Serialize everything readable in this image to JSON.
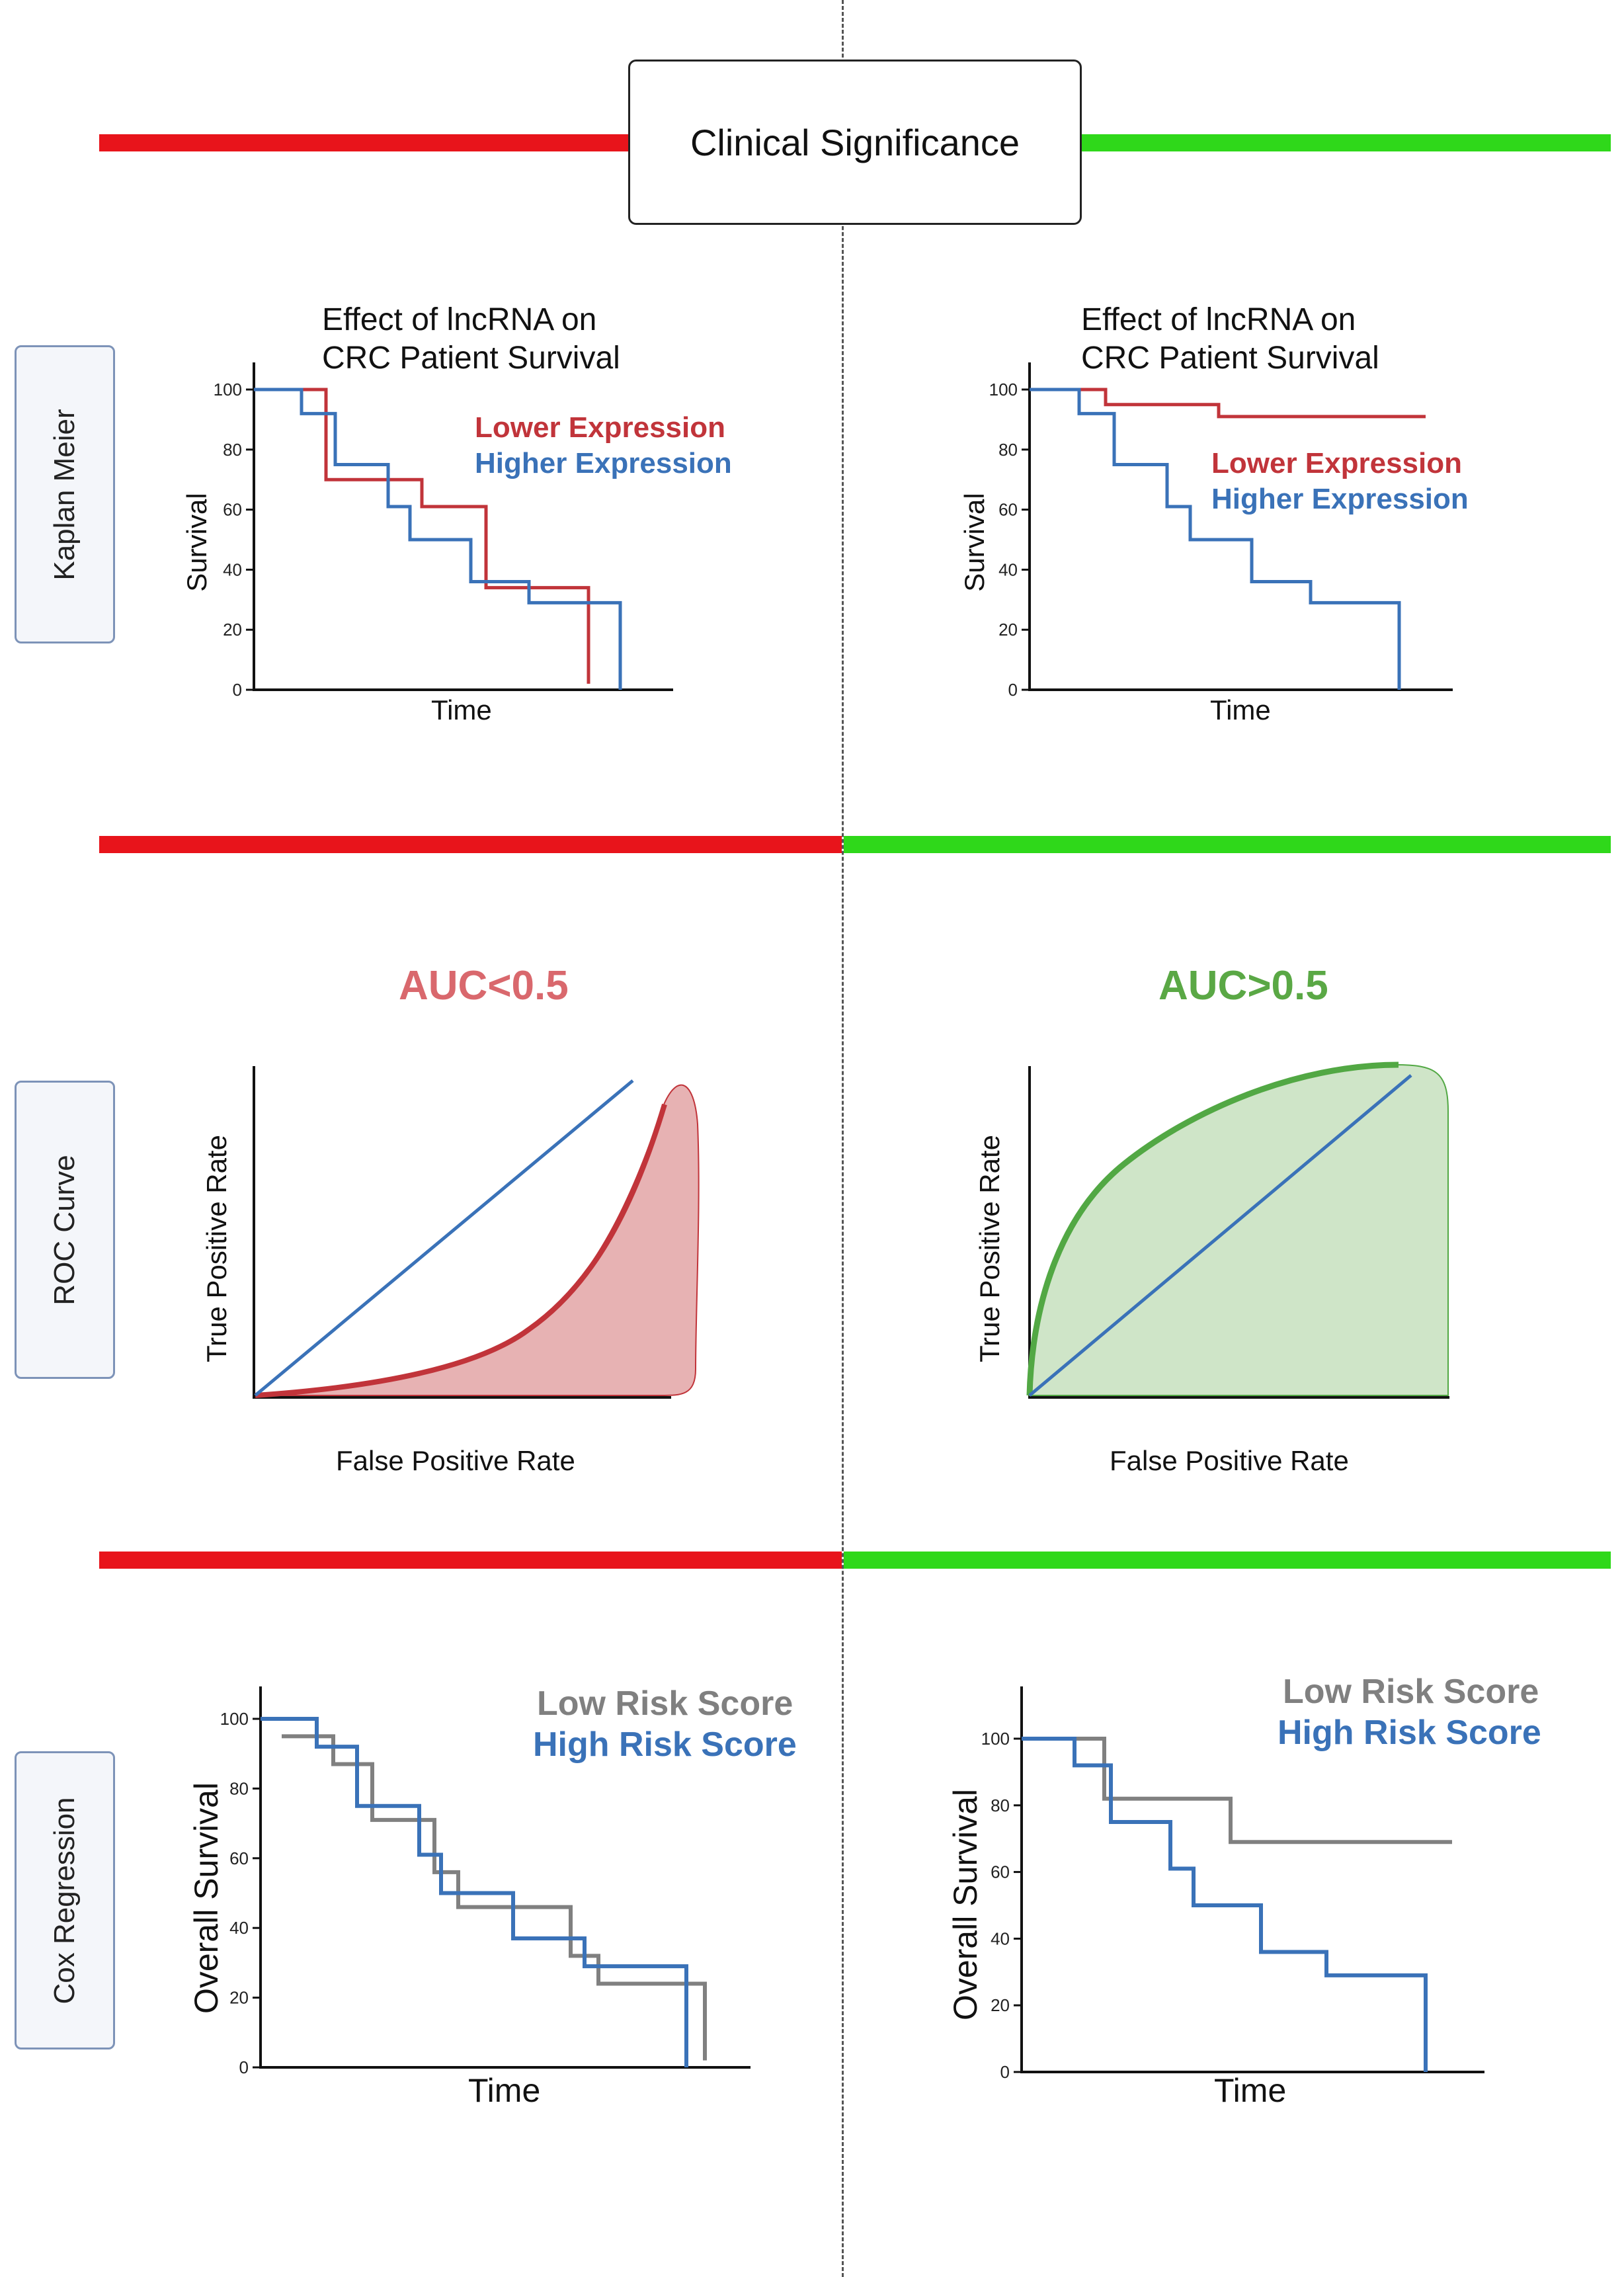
{
  "header": {
    "title": "Clinical Significance"
  },
  "colors": {
    "negative": "#e8141b",
    "positive": "#2fd81a",
    "red_line": "#c1343a",
    "blue_line": "#3a72b8",
    "gray_line": "#808080",
    "green_line": "#52a844",
    "auc_neg": "#d9686d",
    "auc_pos": "#5aa845"
  },
  "rows": {
    "kaplan_meier": {
      "label": "Kaplan Meier"
    },
    "roc_curve": {
      "label": "ROC Curve"
    },
    "cox_regression": {
      "label": "Cox Regression"
    }
  },
  "charts": {
    "km_left": {
      "title_line1": "Effect of lncRNA on",
      "title_line2": "CRC Patient Survival",
      "legend_lower": "Lower Expression",
      "legend_higher": "Higher Expression",
      "xlabel": "Time",
      "ylabel": "Survival",
      "yticks": [
        "100",
        "80",
        "60",
        "40",
        "20",
        "0"
      ]
    },
    "km_right": {
      "title_line1": "Effect of lncRNA on",
      "title_line2": "CRC Patient Survival",
      "legend_lower": "Lower Expression",
      "legend_higher": "Higher Expression",
      "xlabel": "Time",
      "ylabel": "Survival",
      "yticks": [
        "100",
        "80",
        "60",
        "40",
        "20",
        "0"
      ]
    },
    "roc_left": {
      "auc_label": "AUC<0.5",
      "xlabel": "False Positive Rate",
      "ylabel": "True Positive Rate"
    },
    "roc_right": {
      "auc_label": "AUC>0.5",
      "xlabel": "False Positive Rate",
      "ylabel": "True Positive Rate"
    },
    "cox_left": {
      "legend_low": "Low Risk Score",
      "legend_high": "High Risk Score",
      "xlabel": "Time",
      "ylabel": "Overall Survival",
      "yticks": [
        "100",
        "80",
        "60",
        "40",
        "20",
        "0"
      ]
    },
    "cox_right": {
      "legend_low": "Low Risk Score",
      "legend_high": "High Risk Score",
      "xlabel": "Time",
      "ylabel": "Overall Survival",
      "yticks": [
        "100",
        "80",
        "60",
        "40",
        "20",
        "0"
      ]
    }
  },
  "chart_data": [
    {
      "type": "line",
      "title": "Effect of lncRNA on CRC Patient Survival",
      "xlabel": "Time",
      "ylabel": "Survival",
      "ylim": [
        0,
        100
      ],
      "series": [
        {
          "name": "Lower Expression",
          "x": [
            0,
            1,
            2,
            3,
            4,
            5,
            6,
            6.6
          ],
          "y": [
            100,
            70,
            70,
            61,
            34,
            34,
            34,
            2
          ]
        },
        {
          "name": "Higher Expression",
          "x": [
            0,
            1,
            1.5,
            2.7,
            3.5,
            4.4,
            5.2,
            7.0
          ],
          "y": [
            100,
            92,
            75,
            61,
            50,
            36,
            29,
            0
          ]
        }
      ]
    },
    {
      "type": "line",
      "title": "Effect of lncRNA on CRC Patient Survival",
      "xlabel": "Time",
      "ylabel": "Survival",
      "ylim": [
        0,
        100
      ],
      "series": [
        {
          "name": "Lower Expression",
          "x": [
            0,
            2,
            5,
            10
          ],
          "y": [
            100,
            95,
            91,
            91
          ]
        },
        {
          "name": "Higher Expression",
          "x": [
            0,
            1,
            2,
            3,
            4,
            5,
            6,
            7.3
          ],
          "y": [
            100,
            92,
            75,
            61,
            50,
            36,
            29,
            0
          ]
        }
      ]
    },
    {
      "type": "area",
      "title": "AUC<0.5",
      "xlabel": "False Positive Rate",
      "ylabel": "True Positive Rate",
      "series": [
        {
          "name": "ROC",
          "x": [
            0,
            0.3,
            0.6,
            0.75,
            0.85,
            0.95
          ],
          "y": [
            0,
            0.03,
            0.14,
            0.3,
            0.55,
            0.88
          ]
        },
        {
          "name": "Reference",
          "x": [
            0,
            0.9
          ],
          "y": [
            0,
            0.98
          ]
        }
      ]
    },
    {
      "type": "area",
      "title": "AUC>0.5",
      "xlabel": "False Positive Rate",
      "ylabel": "True Positive Rate",
      "series": [
        {
          "name": "ROC",
          "x": [
            0,
            0.05,
            0.2,
            0.45,
            0.7,
            0.9
          ],
          "y": [
            0,
            0.55,
            0.8,
            0.93,
            0.98,
            0.99
          ]
        },
        {
          "name": "Reference",
          "x": [
            0,
            0.93
          ],
          "y": [
            0,
            0.98
          ]
        }
      ]
    },
    {
      "type": "line",
      "xlabel": "Time",
      "ylabel": "Overall Survival",
      "ylim": [
        0,
        100
      ],
      "series": [
        {
          "name": "Low Risk Score",
          "x": [
            0,
            1,
            2,
            3,
            4,
            5,
            6,
            6.4
          ],
          "y": [
            95,
            87,
            71,
            56,
            46,
            32,
            24,
            2
          ]
        },
        {
          "name": "High Risk Score",
          "x": [
            0,
            1,
            2,
            3,
            4,
            5,
            6,
            6.2
          ],
          "y": [
            100,
            92,
            75,
            61,
            50,
            37,
            29,
            0
          ]
        }
      ]
    },
    {
      "type": "line",
      "xlabel": "Time",
      "ylabel": "Overall Survival",
      "ylim": [
        0,
        100
      ],
      "series": [
        {
          "name": "Low Risk Score",
          "x": [
            0,
            1,
            3,
            4,
            7
          ],
          "y": [
            100,
            82,
            82,
            69,
            69
          ]
        },
        {
          "name": "High Risk Score",
          "x": [
            0,
            1,
            2,
            3,
            4,
            5,
            6.1
          ],
          "y": [
            100,
            92,
            75,
            61,
            50,
            36,
            0
          ]
        }
      ]
    }
  ]
}
